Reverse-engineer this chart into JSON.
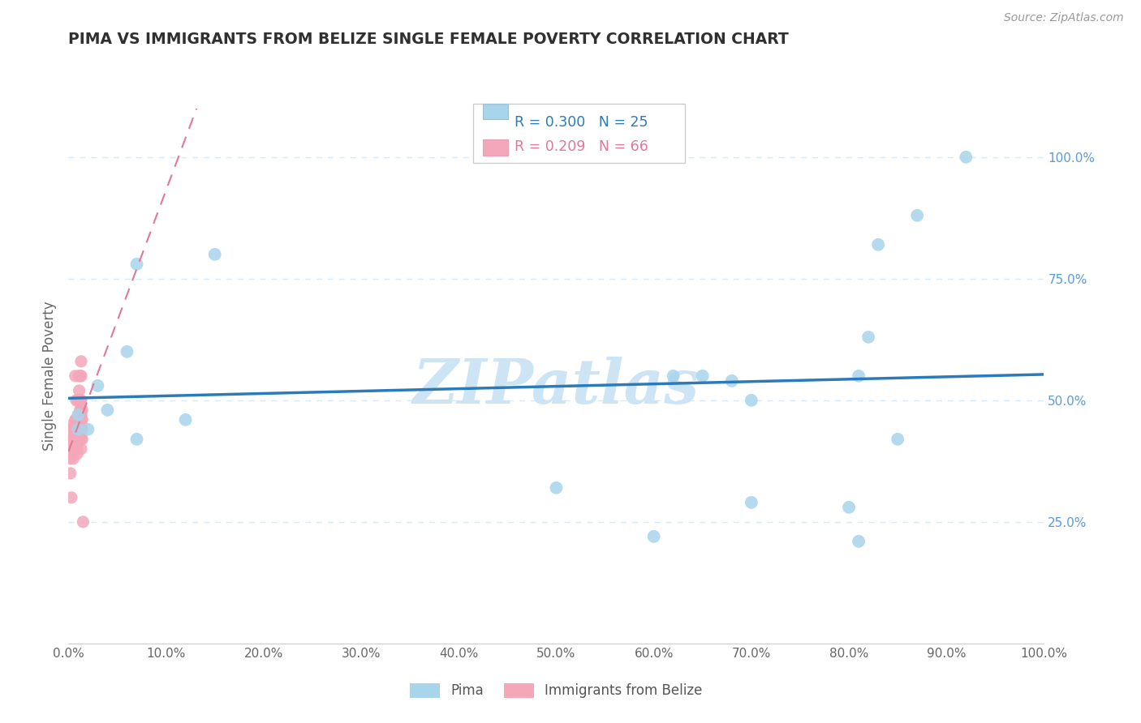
{
  "title": "PIMA VS IMMIGRANTS FROM BELIZE SINGLE FEMALE POVERTY CORRELATION CHART",
  "source": "Source: ZipAtlas.com",
  "ylabel": "Single Female Poverty",
  "legend_pima": "Pima",
  "legend_belize": "Immigrants from Belize",
  "legend_pima_r": "R = 0.300",
  "legend_pima_n": "N = 25",
  "legend_belize_r": "R = 0.209",
  "legend_belize_n": "N = 66",
  "watermark": "ZIPatlas",
  "pima_x": [
    0.07,
    0.15,
    0.01,
    0.04,
    0.03,
    0.06,
    0.01,
    0.02,
    0.07,
    0.12,
    0.85,
    0.7,
    0.65,
    0.92,
    0.5,
    0.8,
    0.7,
    0.82,
    0.68,
    0.83,
    0.81,
    0.62,
    0.6,
    0.81,
    0.87
  ],
  "pima_y": [
    0.78,
    0.8,
    0.47,
    0.48,
    0.53,
    0.6,
    0.44,
    0.44,
    0.42,
    0.46,
    0.42,
    0.5,
    0.55,
    1.0,
    0.32,
    0.28,
    0.29,
    0.63,
    0.54,
    0.82,
    0.55,
    0.55,
    0.22,
    0.21,
    0.88
  ],
  "belize_x": [
    0.001,
    0.001,
    0.002,
    0.002,
    0.002,
    0.003,
    0.003,
    0.003,
    0.003,
    0.004,
    0.004,
    0.004,
    0.005,
    0.005,
    0.005,
    0.006,
    0.006,
    0.006,
    0.007,
    0.007,
    0.007,
    0.007,
    0.007,
    0.008,
    0.008,
    0.008,
    0.008,
    0.009,
    0.009,
    0.009,
    0.009,
    0.009,
    0.009,
    0.01,
    0.01,
    0.01,
    0.01,
    0.01,
    0.01,
    0.01,
    0.011,
    0.011,
    0.011,
    0.011,
    0.011,
    0.012,
    0.012,
    0.012,
    0.012,
    0.012,
    0.013,
    0.013,
    0.013,
    0.013,
    0.013,
    0.013,
    0.013,
    0.013,
    0.013,
    0.013,
    0.013,
    0.014,
    0.014,
    0.014,
    0.014,
    0.015
  ],
  "belize_y": [
    0.44,
    0.4,
    0.42,
    0.38,
    0.35,
    0.4,
    0.43,
    0.41,
    0.3,
    0.42,
    0.4,
    0.45,
    0.44,
    0.42,
    0.38,
    0.43,
    0.42,
    0.4,
    0.55,
    0.46,
    0.43,
    0.42,
    0.4,
    0.5,
    0.46,
    0.44,
    0.43,
    0.44,
    0.43,
    0.42,
    0.41,
    0.4,
    0.39,
    0.5,
    0.47,
    0.46,
    0.45,
    0.44,
    0.43,
    0.42,
    0.55,
    0.52,
    0.5,
    0.46,
    0.44,
    0.55,
    0.5,
    0.48,
    0.47,
    0.45,
    0.58,
    0.55,
    0.5,
    0.48,
    0.47,
    0.46,
    0.45,
    0.44,
    0.43,
    0.42,
    0.4,
    0.48,
    0.46,
    0.44,
    0.42,
    0.25
  ],
  "pima_color": "#a8d4ec",
  "belize_color": "#f4a7b9",
  "pima_line_color": "#2b7bba",
  "belize_line_color": "#e07898",
  "grid_color": "#d8eaf7",
  "background_color": "#ffffff",
  "title_color": "#303030",
  "right_axis_color": "#5b9bd5",
  "watermark_color": "#cde4f4",
  "xmin": 0.0,
  "xmax": 1.0,
  "ymin": 0.0,
  "ymax": 1.1,
  "xticks": [
    0.0,
    0.1,
    0.2,
    0.3,
    0.4,
    0.5,
    0.6,
    0.7,
    0.8,
    0.9,
    1.0
  ],
  "xticklabels": [
    "0.0%",
    "10.0%",
    "20.0%",
    "30.0%",
    "40.0%",
    "50.0%",
    "60.0%",
    "70.0%",
    "80.0%",
    "90.0%",
    "100.0%"
  ],
  "yticks_right": [
    0.25,
    0.5,
    0.75,
    1.0
  ],
  "yticklabels_right": [
    "25.0%",
    "50.0%",
    "75.0%",
    "100.0%"
  ]
}
